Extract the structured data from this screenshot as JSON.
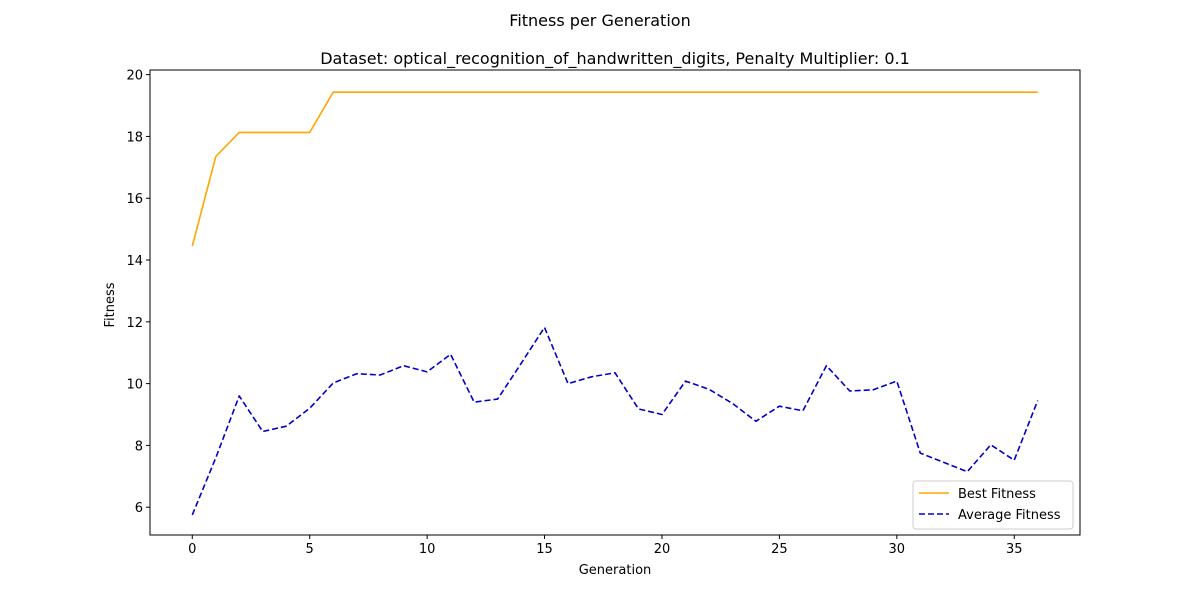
{
  "figure": {
    "suptitle": "Fitness per Generation"
  },
  "chart_data": {
    "type": "line",
    "title": "Dataset: optical_recognition_of_handwritten_digits, Penalty Multiplier: 0.1",
    "xlabel": "Generation",
    "ylabel": "Fitness",
    "xlim": [
      -1.8,
      37.8
    ],
    "ylim": [
      5.1,
      20.15
    ],
    "xticks": [
      0,
      5,
      10,
      15,
      20,
      25,
      30,
      35
    ],
    "yticks": [
      6,
      8,
      10,
      12,
      14,
      16,
      18,
      20
    ],
    "grid": false,
    "legend_position": "lower right",
    "x": [
      0,
      1,
      2,
      3,
      4,
      5,
      6,
      7,
      8,
      9,
      10,
      11,
      12,
      13,
      14,
      15,
      16,
      17,
      18,
      19,
      20,
      21,
      22,
      23,
      24,
      25,
      26,
      27,
      28,
      29,
      30,
      31,
      32,
      33,
      34,
      35,
      36
    ],
    "series": [
      {
        "name": "Best Fitness",
        "color": "#ffa500",
        "style": "solid",
        "values": [
          14.45,
          17.35,
          18.13,
          18.13,
          18.13,
          18.13,
          19.43,
          19.43,
          19.43,
          19.43,
          19.43,
          19.43,
          19.43,
          19.43,
          19.43,
          19.43,
          19.43,
          19.43,
          19.43,
          19.43,
          19.43,
          19.43,
          19.43,
          19.43,
          19.43,
          19.43,
          19.43,
          19.43,
          19.43,
          19.43,
          19.43,
          19.43,
          19.43,
          19.43,
          19.43,
          19.43,
          19.43
        ]
      },
      {
        "name": "Average Fitness",
        "color": "#0000cd",
        "style": "dashed",
        "values": [
          5.75,
          7.6,
          9.6,
          8.45,
          8.62,
          9.2,
          10.02,
          10.32,
          10.28,
          10.58,
          10.38,
          10.95,
          9.4,
          9.5,
          10.65,
          11.82,
          10.0,
          10.22,
          10.35,
          9.18,
          9.0,
          10.08,
          9.82,
          9.36,
          8.78,
          9.27,
          9.12,
          10.58,
          9.76,
          9.8,
          10.08,
          7.75,
          7.45,
          7.15,
          8.02,
          7.52,
          9.45
        ]
      }
    ]
  }
}
